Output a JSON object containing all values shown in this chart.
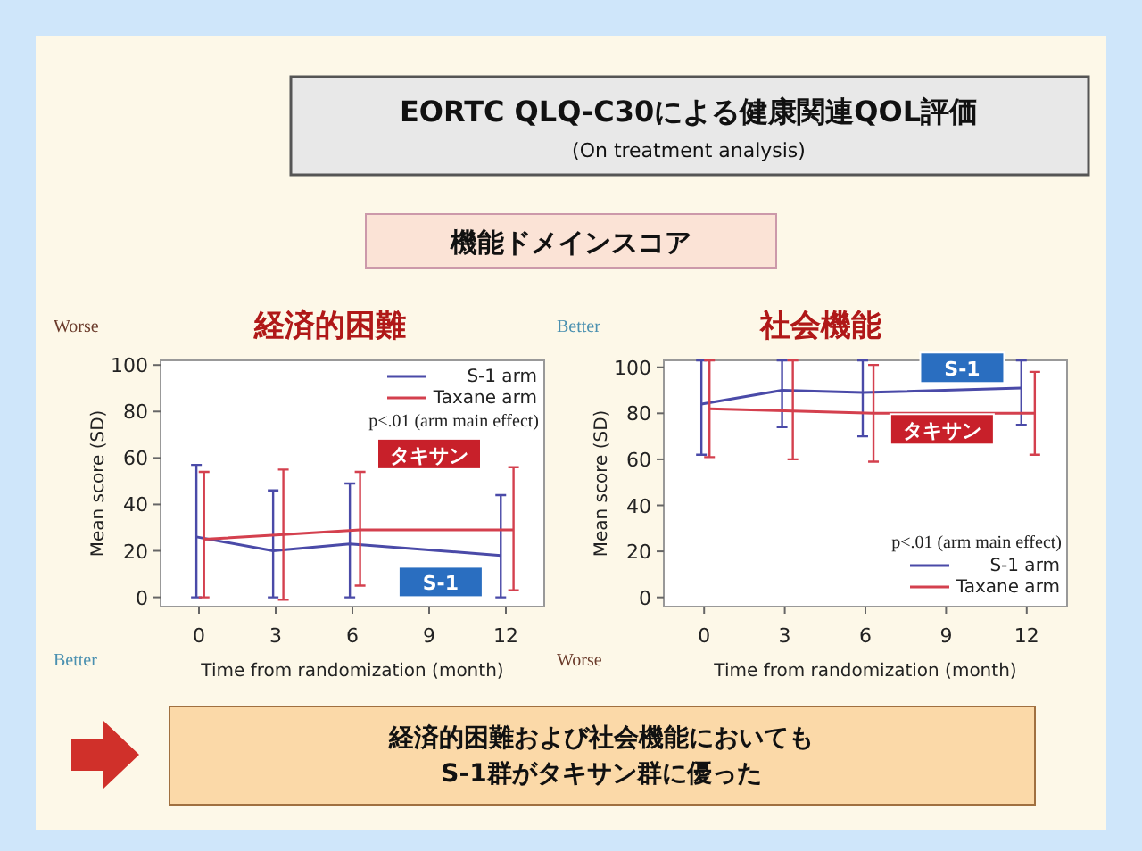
{
  "chart_data": [
    {
      "type": "other",
      "title": "EORTC QLQ-C30による健康関連QOL評価",
      "subtitle": "(On treatment analysis)",
      "annotations": [
        "機能ドメインスコア",
        "経済的困難および社会機能においても",
        "S-1群がタキサン群に優った"
      ]
    },
    {
      "type": "line",
      "title": "経済的困難",
      "xlabel": "Time from randomization (month)",
      "ylabel": "Mean score (SD)",
      "xlim": [
        -1.5,
        13.5
      ],
      "xticks": [
        0,
        3,
        6,
        9,
        12
      ],
      "ylim": [
        -4,
        102
      ],
      "yticks": [
        0,
        20,
        40,
        60,
        80,
        100
      ],
      "legend": "top right",
      "series": [
        {
          "name": "S-1 arm",
          "color": "#4a4aa8",
          "x": [
            -0.1,
            2.9,
            5.9,
            11.8
          ],
          "values": [
            26,
            20,
            23,
            18
          ],
          "errors": [
            [
              0,
              57
            ],
            [
              0,
              46
            ],
            [
              0,
              49
            ],
            [
              0,
              44
            ]
          ]
        },
        {
          "name": "Taxane arm",
          "color": "#d4404e",
          "x": [
            0.2,
            3.3,
            6.3,
            12.3
          ],
          "values": [
            25,
            27,
            29,
            29
          ],
          "errors": [
            [
              0,
              54
            ],
            [
              -1,
              55
            ],
            [
              5,
              54
            ],
            [
              3,
              56
            ]
          ]
        }
      ],
      "annotations": [
        "Worse",
        "Better",
        "p<.01 (arm main effect)",
        "タキサン",
        "S-1"
      ]
    },
    {
      "type": "line",
      "title": "社会機能",
      "xlabel": "Time from randomization (month)",
      "ylabel": "Mean score (SD)",
      "xlim": [
        -1.5,
        13.5
      ],
      "xticks": [
        0,
        3,
        6,
        9,
        12
      ],
      "ylim": [
        -4,
        103
      ],
      "yticks": [
        0,
        20,
        40,
        60,
        80,
        100
      ],
      "legend": "bottom right",
      "series": [
        {
          "name": "S-1 arm",
          "color": "#4a4aa8",
          "x": [
            -0.1,
            2.9,
            5.9,
            11.8
          ],
          "values": [
            84,
            90,
            89,
            91
          ],
          "errors": [
            [
              62,
              103
            ],
            [
              74,
              103
            ],
            [
              70,
              103
            ],
            [
              75,
              103
            ]
          ]
        },
        {
          "name": "Taxane arm",
          "color": "#d4404e",
          "x": [
            0.2,
            3.3,
            6.3,
            12.3
          ],
          "values": [
            82,
            81,
            80,
            80
          ],
          "errors": [
            [
              61,
              103
            ],
            [
              60,
              103
            ],
            [
              59,
              101
            ],
            [
              62,
              98
            ]
          ]
        }
      ],
      "annotations": [
        "Better",
        "Worse",
        "p<.01 (arm main effect)",
        "S-1",
        "タキサン"
      ]
    }
  ]
}
